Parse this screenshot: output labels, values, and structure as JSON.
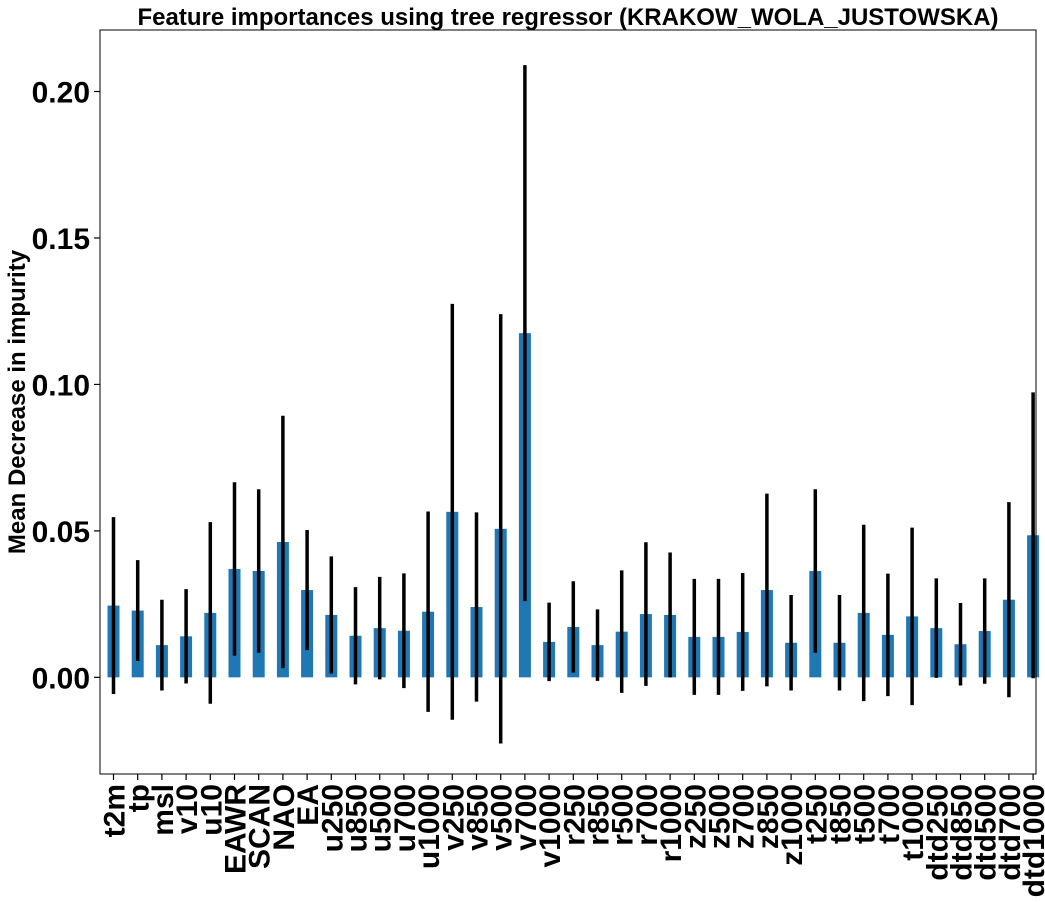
{
  "chart_data": {
    "type": "bar",
    "title": "Feature importances using tree regressor (KRAKOW_WOLA_JUSTOWSKA)",
    "xlabel": "",
    "ylabel": "Mean Decrease in impurity",
    "ylim": [
      -0.033,
      0.221
    ],
    "yticks": [
      0.0,
      0.05,
      0.1,
      0.15,
      0.2
    ],
    "ytick_labels": [
      "0.00",
      "0.05",
      "0.10",
      "0.15",
      "0.20"
    ],
    "grid": false,
    "bar_color": "#1f77b4",
    "error_color": "#000000",
    "categories": [
      "t2m",
      "tp",
      "msl",
      "v10",
      "u10",
      "EAWR",
      "SCAN",
      "NAO",
      "EA",
      "u250",
      "u850",
      "u500",
      "u700",
      "u1000",
      "v250",
      "v850",
      "v500",
      "v700",
      "v1000",
      "r250",
      "r850",
      "r500",
      "r700",
      "r1000",
      "z250",
      "z500",
      "z700",
      "z850",
      "z1000",
      "t250",
      "t850",
      "t500",
      "t700",
      "t1000",
      "dtd250",
      "dtd850",
      "dtd500",
      "dtd700",
      "dtd1000"
    ],
    "values": [
      0.0245,
      0.0228,
      0.011,
      0.014,
      0.022,
      0.037,
      0.0363,
      0.0462,
      0.0298,
      0.0213,
      0.0142,
      0.0168,
      0.0159,
      0.0224,
      0.0565,
      0.024,
      0.0507,
      0.1175,
      0.0121,
      0.0172,
      0.011,
      0.0156,
      0.0216,
      0.0213,
      0.0138,
      0.0138,
      0.0155,
      0.0298,
      0.0118,
      0.0363,
      0.0118,
      0.022,
      0.0145,
      0.0208,
      0.0168,
      0.0113,
      0.0158,
      0.0265,
      0.0485
    ],
    "errors": [
      0.0302,
      0.0172,
      0.0155,
      0.0161,
      0.031,
      0.0296,
      0.0279,
      0.0431,
      0.0205,
      0.02,
      0.0166,
      0.0175,
      0.0196,
      0.0342,
      0.071,
      0.0323,
      0.0733,
      0.0915,
      0.0134,
      0.0156,
      0.0122,
      0.0209,
      0.0245,
      0.0213,
      0.0198,
      0.0198,
      0.0201,
      0.0329,
      0.0163,
      0.0279,
      0.0163,
      0.0301,
      0.0209,
      0.0303,
      0.017,
      0.0141,
      0.018,
      0.0333,
      0.0488
    ]
  }
}
